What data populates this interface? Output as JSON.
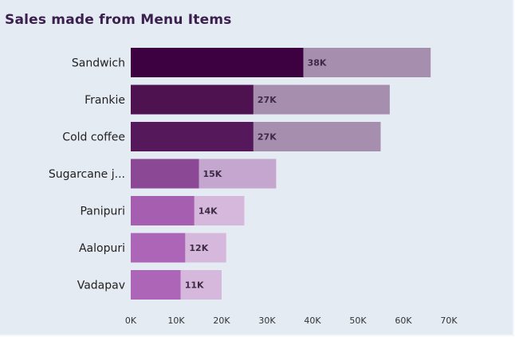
{
  "chart_data": {
    "type": "bar",
    "orientation": "horizontal",
    "title": "Sales made from Menu Items",
    "categories": [
      "Sandwich",
      "Frankie",
      "Cold coffee",
      "Sugarcane j...",
      "Panipuri",
      "Aalopuri",
      "Vadapav"
    ],
    "series": [
      {
        "values": [
          38000,
          27000,
          27000,
          15000,
          14000,
          12000,
          11000
        ]
      },
      {
        "values": [
          28000,
          30000,
          28000,
          17000,
          11000,
          9000,
          9000
        ]
      }
    ],
    "data_labels": [
      "38K",
      "27K",
      "27K",
      "15K",
      "14K",
      "12K",
      "11K"
    ],
    "xlim": [
      0,
      70000
    ],
    "xticks": [
      0,
      10000,
      20000,
      30000,
      40000,
      50000,
      60000,
      70000
    ],
    "xtick_labels": [
      "0K",
      "10K",
      "20K",
      "30K",
      "40K",
      "50K",
      "60K",
      "70K"
    ],
    "grid": false,
    "colors": {
      "dark": [
        "#3d0040",
        "#4f1250",
        "#55185a",
        "#8a4895",
        "#a55eb0",
        "#ad65b8",
        "#ad65b8"
      ],
      "light": [
        "#a68fae",
        "#a68fae",
        "#a68fae",
        "#c4a6cf",
        "#d6b8dc",
        "#d6b8dc",
        "#d6b8dc"
      ]
    }
  }
}
